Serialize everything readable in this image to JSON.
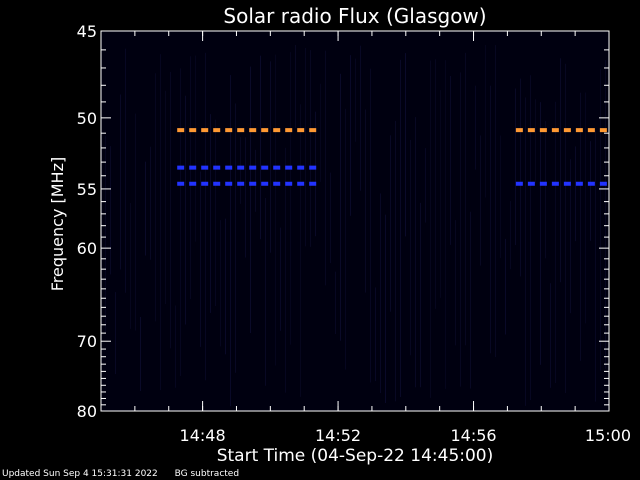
{
  "chart_data": {
    "type": "heatmap",
    "title": "Solar radio Flux (Glasgow)",
    "xlabel": "Start Time (04-Sep-22 14:45:00)",
    "ylabel": "Frequency [MHz]",
    "ylim": [
      45,
      80
    ],
    "yscale": "reciprocal",
    "xlim": [
      "14:45",
      "15:00"
    ],
    "y_ticks": [
      "45",
      "50",
      "55",
      "60",
      "70",
      "80"
    ],
    "x_ticks": [
      "14:48",
      "14:52",
      "14:56",
      "15:00"
    ],
    "background_color": "#000010",
    "bands": [
      {
        "freq": 50.8,
        "start": "14:47:15",
        "end": "14:51:30",
        "color": "#ff9933"
      },
      {
        "freq": 53.4,
        "start": "14:47:15",
        "end": "14:51:30",
        "color": "#2233ff"
      },
      {
        "freq": 54.6,
        "start": "14:47:15",
        "end": "14:51:30",
        "color": "#2233ff"
      },
      {
        "freq": 50.8,
        "start": "14:57:15",
        "end": "15:00:00",
        "color": "#ff9933"
      },
      {
        "freq": 54.6,
        "start": "14:57:15",
        "end": "15:00:00",
        "color": "#2233ff"
      }
    ]
  },
  "footer": {
    "updated": "Updated Sun Sep  4 15:31:31 2022",
    "note": "BG subtracted"
  }
}
